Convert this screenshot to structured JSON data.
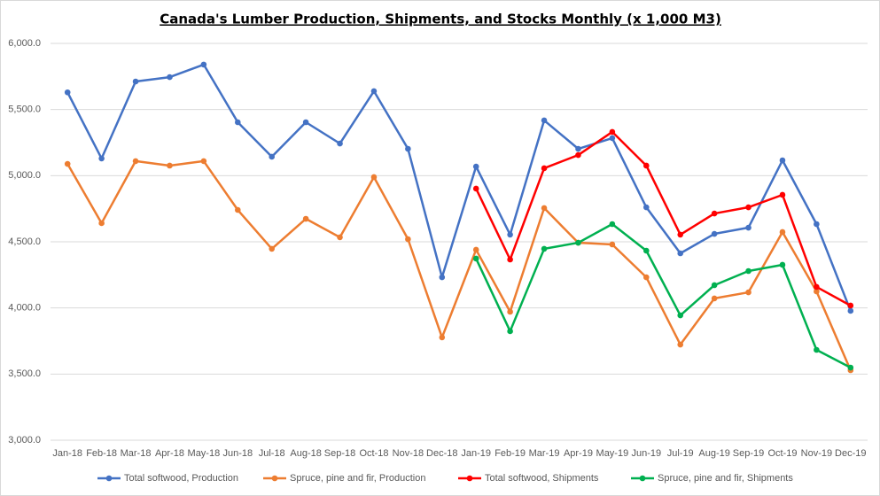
{
  "chart_data": {
    "type": "line",
    "title": "Canada's Lumber Production, Shipments, and Stocks Monthly (x 1,000 M3)",
    "categories": [
      "Jan-18",
      "Feb-18",
      "Mar-18",
      "Apr-18",
      "May-18",
      "Jun-18",
      "Jul-18",
      "Aug-18",
      "Sep-18",
      "Oct-18",
      "Nov-18",
      "Dec-18",
      "Jan-19",
      "Feb-19",
      "Mar-19",
      "Apr-19",
      "May-19",
      "Jun-19",
      "Jul-19",
      "Aug-19",
      "Sep-19",
      "Oct-19",
      "Nov-19",
      "Dec-19"
    ],
    "series": [
      {
        "name": "Total softwood, Production",
        "color": "#4472c4",
        "values": [
          5630,
          5130,
          5712,
          5745,
          5840,
          5404,
          5143,
          5404,
          5243,
          5639,
          5203,
          4232,
          5069,
          4554,
          5418,
          5203,
          5284,
          4761,
          4413,
          4560,
          4607,
          5116,
          4634,
          3978
        ]
      },
      {
        "name": "Spruce, pine and fir, Production",
        "color": "#ed7d31",
        "values": [
          5089,
          4641,
          5110,
          5076,
          5110,
          4741,
          4447,
          4674,
          4534,
          4989,
          4520,
          3777,
          4440,
          3971,
          4755,
          4493,
          4480,
          4232,
          3723,
          4072,
          4118,
          4574,
          4125,
          3529
        ]
      },
      {
        "name": "Total softwood, Shipments",
        "color": "#ff0000",
        "values": [
          null,
          null,
          null,
          null,
          null,
          null,
          null,
          null,
          null,
          null,
          null,
          null,
          4902,
          4366,
          5056,
          5156,
          5331,
          5076,
          4554,
          4714,
          4761,
          4855,
          4159,
          4018
        ]
      },
      {
        "name": "Spruce, pine and fir, Shipments",
        "color": "#00b050",
        "values": [
          null,
          null,
          null,
          null,
          null,
          null,
          null,
          null,
          null,
          null,
          null,
          null,
          4373,
          3824,
          4447,
          4493,
          4634,
          4433,
          3944,
          4172,
          4279,
          4326,
          3683,
          3549
        ]
      }
    ],
    "ylim": [
      3000,
      6000
    ],
    "yticks": [
      {
        "value": 3000,
        "label": "3,000.0"
      },
      {
        "value": 3500,
        "label": "3,500.0"
      },
      {
        "value": 4000,
        "label": "4,000.0"
      },
      {
        "value": 4500,
        "label": "4,500.0"
      },
      {
        "value": 5000,
        "label": "5,000.0"
      },
      {
        "value": 5500,
        "label": "5,500.0"
      },
      {
        "value": 6000,
        "label": "6,000.0"
      }
    ],
    "grid": true,
    "legend": "bottom"
  }
}
